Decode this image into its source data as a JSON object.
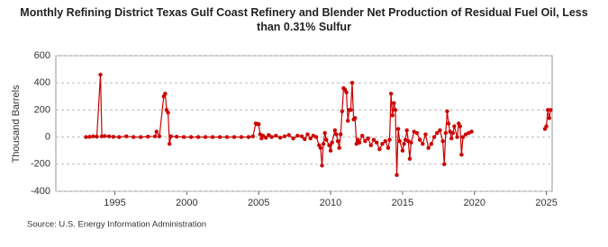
{
  "chart_data": {
    "type": "line",
    "title": "Monthly Refining District Texas Gulf Coast Refinery and Blender Net Production of Residual Fuel Oil, Less than 0.31% Sulfur",
    "y_label": "Thousand Barrels",
    "source": "Source: U.S. Energy Information Administration",
    "color": "#cc0000",
    "grid": true,
    "xlim": [
      1990.9,
      2025.4
    ],
    "xticks": [
      1995,
      2000,
      2005,
      2010,
      2015,
      2020,
      2025
    ],
    "ylim": [
      -400,
      600
    ],
    "yticks": [
      600,
      400,
      200,
      0,
      -200,
      -400
    ],
    "x": [
      1993.0,
      1993.25,
      1993.5,
      1993.75,
      1994.0,
      1994.1,
      1994.3,
      1994.6,
      1994.9,
      1995.3,
      1995.8,
      1996.3,
      1996.8,
      1997.3,
      1997.8,
      1997.9,
      1998.1,
      1998.4,
      1998.5,
      1998.6,
      1998.7,
      1998.8,
      1998.9,
      1999.3,
      1999.8,
      2000.3,
      2000.8,
      2001.3,
      2001.8,
      2002.3,
      2002.8,
      2003.3,
      2003.8,
      2004.3,
      2004.6,
      2004.8,
      2004.9,
      2005.0,
      2005.1,
      2005.2,
      2005.3,
      2005.5,
      2005.7,
      2005.9,
      2006.2,
      2006.5,
      2006.8,
      2007.1,
      2007.4,
      2007.7,
      2008.0,
      2008.2,
      2008.4,
      2008.6,
      2008.8,
      2009.0,
      2009.2,
      2009.3,
      2009.4,
      2009.5,
      2009.6,
      2009.7,
      2009.9,
      2010.0,
      2010.1,
      2010.3,
      2010.4,
      2010.5,
      2010.6,
      2010.7,
      2010.8,
      2010.9,
      2011.0,
      2011.1,
      2011.2,
      2011.3,
      2011.4,
      2011.5,
      2011.6,
      2011.7,
      2011.8,
      2011.9,
      2012.0,
      2012.2,
      2012.4,
      2012.6,
      2012.8,
      2013.0,
      2013.2,
      2013.4,
      2013.6,
      2013.8,
      2014.0,
      2014.1,
      2014.2,
      2014.3,
      2014.4,
      2014.5,
      2014.6,
      2014.7,
      2014.8,
      2015.0,
      2015.1,
      2015.2,
      2015.3,
      2015.4,
      2015.5,
      2015.6,
      2015.8,
      2016.0,
      2016.2,
      2016.4,
      2016.6,
      2016.8,
      2017.0,
      2017.2,
      2017.4,
      2017.6,
      2017.8,
      2017.9,
      2018.0,
      2018.1,
      2018.2,
      2018.3,
      2018.4,
      2018.5,
      2018.6,
      2018.8,
      2018.9,
      2019.0,
      2019.1,
      2019.2,
      2019.4,
      2019.6,
      2019.8,
      2022.0,
      2024.9,
      2025.0,
      2025.1,
      2025.2,
      2025.3
    ],
    "values": [
      0,
      2,
      5,
      3,
      460,
      5,
      8,
      5,
      2,
      0,
      5,
      0,
      0,
      3,
      5,
      40,
      5,
      300,
      320,
      200,
      180,
      -50,
      5,
      3,
      0,
      0,
      0,
      0,
      0,
      0,
      0,
      0,
      0,
      0,
      5,
      100,
      95,
      95,
      20,
      -10,
      10,
      -5,
      15,
      0,
      10,
      -5,
      5,
      15,
      -10,
      10,
      5,
      -15,
      20,
      -10,
      10,
      0,
      -60,
      -80,
      -210,
      -50,
      30,
      -20,
      -60,
      -100,
      -40,
      50,
      20,
      -30,
      -80,
      20,
      190,
      360,
      350,
      330,
      120,
      200,
      200,
      400,
      130,
      140,
      -50,
      -20,
      -40,
      10,
      -30,
      -10,
      -60,
      -20,
      -40,
      -90,
      -50,
      -30,
      -80,
      -20,
      320,
      160,
      250,
      200,
      -280,
      60,
      -30,
      -100,
      -50,
      -20,
      50,
      -30,
      -160,
      -40,
      40,
      30,
      -20,
      -50,
      20,
      -80,
      -50,
      0,
      30,
      50,
      -30,
      -200,
      30,
      190,
      100,
      40,
      -10,
      30,
      80,
      0,
      100,
      80,
      -130,
      0,
      20,
      30,
      40,
      null,
      60,
      80,
      200,
      140,
      200
    ]
  }
}
